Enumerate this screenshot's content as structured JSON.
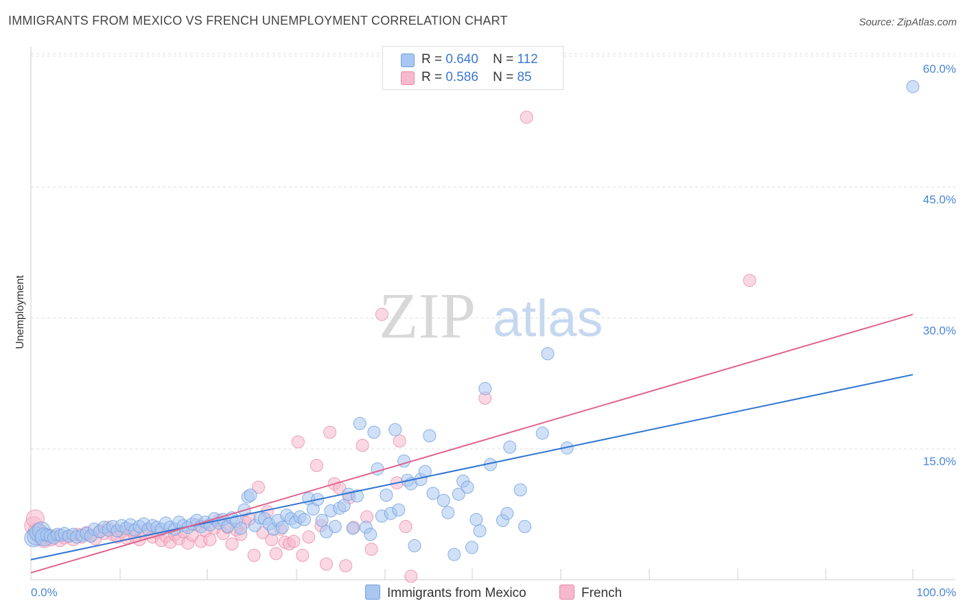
{
  "title": "IMMIGRANTS FROM MEXICO VS FRENCH UNEMPLOYMENT CORRELATION CHART",
  "source": "Source: ZipAtlas.com",
  "legend": {
    "row1": {
      "r_label": "R =",
      "r_value": "0.640",
      "n_label": "N =",
      "n_value": "112"
    },
    "row2": {
      "r_label": "R =",
      "r_value": "0.586",
      "n_label": "N =",
      "n_value": "85"
    }
  },
  "bottom_legend": {
    "series1": "Immigrants from Mexico",
    "series2": "French"
  },
  "watermark": {
    "part1": "ZIP",
    "part2": "atlas"
  },
  "colors": {
    "blue_fill": "#a9c7f0",
    "blue_stroke": "#6f9fde",
    "blue_line": "#2f74d0",
    "pink_fill": "#f6b8cc",
    "pink_stroke": "#e88aa8",
    "pink_line": "#e0628d",
    "tick_text": "#4a86d8",
    "grid": "#dddddd"
  },
  "chart_data": {
    "type": "scatter",
    "title": "IMMIGRANTS FROM MEXICO VS FRENCH UNEMPLOYMENT CORRELATION CHART",
    "xlabel": "",
    "ylabel": "Unemployment",
    "xlim": [
      0,
      100
    ],
    "ylim": [
      0,
      63
    ],
    "x_tick_labels": [
      "0.0%",
      "100.0%"
    ],
    "y_ticks": [
      15,
      30,
      45,
      60
    ],
    "y_tick_labels": [
      "15.0%",
      "30.0%",
      "45.0%",
      "60.0%"
    ],
    "grid": true,
    "legend_position": "top-center",
    "series": [
      {
        "name": "Immigrants from Mexico",
        "color": "#a9c7f0",
        "r": 0.64,
        "n": 112,
        "trend": {
          "x": [
            0,
            100
          ],
          "y": [
            2.3,
            23.5
          ]
        },
        "points": [
          [
            0.3,
            4.8
          ],
          [
            0.6,
            5.0
          ],
          [
            0.9,
            5.4
          ],
          [
            1.2,
            5.6
          ],
          [
            1.5,
            4.9
          ],
          [
            1.8,
            5.1
          ],
          [
            2.2,
            5.0
          ],
          [
            2.6,
            4.8
          ],
          [
            3.0,
            5.2
          ],
          [
            3.4,
            5.1
          ],
          [
            3.8,
            5.3
          ],
          [
            4.3,
            5.0
          ],
          [
            4.8,
            5.2
          ],
          [
            5.2,
            4.9
          ],
          [
            5.8,
            5.1
          ],
          [
            6.3,
            5.3
          ],
          [
            6.8,
            5.0
          ],
          [
            7.2,
            5.8
          ],
          [
            7.8,
            5.5
          ],
          [
            8.3,
            6.0
          ],
          [
            8.8,
            5.7
          ],
          [
            9.3,
            6.1
          ],
          [
            9.8,
            5.6
          ],
          [
            10.3,
            6.2
          ],
          [
            10.8,
            5.9
          ],
          [
            11.3,
            6.3
          ],
          [
            11.8,
            5.7
          ],
          [
            12.3,
            6.1
          ],
          [
            12.8,
            6.4
          ],
          [
            13.3,
            5.8
          ],
          [
            13.8,
            6.2
          ],
          [
            14.3,
            6.0
          ],
          [
            14.8,
            5.8
          ],
          [
            15.3,
            6.5
          ],
          [
            15.8,
            6.0
          ],
          [
            16.3,
            5.8
          ],
          [
            16.8,
            6.6
          ],
          [
            17.3,
            6.2
          ],
          [
            17.8,
            6.0
          ],
          [
            18.3,
            6.4
          ],
          [
            18.8,
            6.8
          ],
          [
            19.3,
            6.1
          ],
          [
            19.8,
            6.6
          ],
          [
            20.3,
            6.3
          ],
          [
            20.8,
            7.0
          ],
          [
            21.3,
            6.5
          ],
          [
            21.8,
            6.9
          ],
          [
            22.3,
            6.1
          ],
          [
            22.8,
            7.1
          ],
          [
            23.3,
            6.7
          ],
          [
            23.8,
            5.9
          ],
          [
            24.2,
            8.0
          ],
          [
            24.6,
            9.5
          ],
          [
            24.9,
            9.7
          ],
          [
            25.4,
            6.2
          ],
          [
            26.0,
            7.1
          ],
          [
            26.5,
            7.0
          ],
          [
            27.0,
            6.4
          ],
          [
            27.5,
            5.8
          ],
          [
            28.0,
            6.8
          ],
          [
            28.5,
            6.0
          ],
          [
            29.0,
            7.4
          ],
          [
            29.5,
            7.0
          ],
          [
            30.0,
            6.6
          ],
          [
            30.5,
            7.2
          ],
          [
            31.0,
            6.9
          ],
          [
            31.5,
            9.3
          ],
          [
            32.0,
            8.1
          ],
          [
            32.5,
            9.2
          ],
          [
            33.0,
            6.8
          ],
          [
            33.5,
            5.5
          ],
          [
            34.0,
            7.9
          ],
          [
            34.5,
            6.1
          ],
          [
            35.0,
            8.2
          ],
          [
            35.5,
            8.5
          ],
          [
            36.0,
            9.8
          ],
          [
            36.5,
            5.9
          ],
          [
            37.0,
            9.6
          ],
          [
            37.3,
            17.9
          ],
          [
            38.0,
            6.0
          ],
          [
            38.5,
            5.2
          ],
          [
            38.9,
            16.9
          ],
          [
            39.3,
            12.7
          ],
          [
            39.8,
            7.3
          ],
          [
            40.3,
            9.7
          ],
          [
            40.8,
            7.6
          ],
          [
            41.3,
            17.2
          ],
          [
            41.7,
            8.0
          ],
          [
            42.3,
            13.6
          ],
          [
            42.7,
            11.4
          ],
          [
            43.1,
            11.0
          ],
          [
            43.5,
            3.9
          ],
          [
            44.2,
            11.5
          ],
          [
            44.7,
            12.4
          ],
          [
            45.2,
            16.5
          ],
          [
            45.6,
            9.9
          ],
          [
            46.8,
            9.1
          ],
          [
            47.3,
            7.7
          ],
          [
            48.0,
            2.9
          ],
          [
            48.5,
            9.8
          ],
          [
            49.0,
            11.3
          ],
          [
            49.5,
            10.6
          ],
          [
            50.0,
            3.7
          ],
          [
            50.5,
            6.9
          ],
          [
            50.9,
            5.6
          ],
          [
            51.5,
            21.9
          ],
          [
            52.1,
            13.2
          ],
          [
            53.5,
            6.8
          ],
          [
            54.0,
            7.6
          ],
          [
            54.3,
            15.2
          ],
          [
            55.5,
            10.3
          ],
          [
            56.0,
            6.1
          ],
          [
            58.0,
            16.8
          ],
          [
            58.6,
            25.9
          ],
          [
            60.8,
            15.1
          ],
          [
            100.0,
            56.5
          ]
        ]
      },
      {
        "name": "French",
        "color": "#f6b8cc",
        "r": 0.586,
        "n": 85,
        "trend": {
          "x": [
            0,
            100
          ],
          "y": [
            0.8,
            30.4
          ]
        },
        "points": [
          [
            0.3,
            6.2
          ],
          [
            0.7,
            5.5
          ],
          [
            1.1,
            5.0
          ],
          [
            1.5,
            4.7
          ],
          [
            1.9,
            5.2
          ],
          [
            2.3,
            4.6
          ],
          [
            2.8,
            5.0
          ],
          [
            3.3,
            4.5
          ],
          [
            3.8,
            4.8
          ],
          [
            4.3,
            5.0
          ],
          [
            4.8,
            4.6
          ],
          [
            5.3,
            5.2
          ],
          [
            5.8,
            4.9
          ],
          [
            6.3,
            5.4
          ],
          [
            6.8,
            5.1
          ],
          [
            7.3,
            4.7
          ],
          [
            7.8,
            5.6
          ],
          [
            8.3,
            5.3
          ],
          [
            8.8,
            6.0
          ],
          [
            9.3,
            5.2
          ],
          [
            9.8,
            4.9
          ],
          [
            10.3,
            5.5
          ],
          [
            10.8,
            4.8
          ],
          [
            11.3,
            5.7
          ],
          [
            11.8,
            5.0
          ],
          [
            12.3,
            4.6
          ],
          [
            12.8,
            5.3
          ],
          [
            13.3,
            5.8
          ],
          [
            13.8,
            4.9
          ],
          [
            14.3,
            5.4
          ],
          [
            14.8,
            4.5
          ],
          [
            15.3,
            5.0
          ],
          [
            15.8,
            4.3
          ],
          [
            16.3,
            5.2
          ],
          [
            16.8,
            4.7
          ],
          [
            17.3,
            5.5
          ],
          [
            17.8,
            4.2
          ],
          [
            18.3,
            5.1
          ],
          [
            18.8,
            6.3
          ],
          [
            19.3,
            4.4
          ],
          [
            19.8,
            5.6
          ],
          [
            20.3,
            4.6
          ],
          [
            20.8,
            5.9
          ],
          [
            21.3,
            6.8
          ],
          [
            21.8,
            5.3
          ],
          [
            22.3,
            6.0
          ],
          [
            22.8,
            4.1
          ],
          [
            23.3,
            5.7
          ],
          [
            23.8,
            5.2
          ],
          [
            24.3,
            6.6
          ],
          [
            24.8,
            7.0
          ],
          [
            25.3,
            2.8
          ],
          [
            25.8,
            10.6
          ],
          [
            26.3,
            5.4
          ],
          [
            26.8,
            7.8
          ],
          [
            27.3,
            4.6
          ],
          [
            27.8,
            3.0
          ],
          [
            28.3,
            5.8
          ],
          [
            28.8,
            4.3
          ],
          [
            29.3,
            4.1
          ],
          [
            29.8,
            4.4
          ],
          [
            30.3,
            15.8
          ],
          [
            30.8,
            2.8
          ],
          [
            31.5,
            4.9
          ],
          [
            32.4,
            13.1
          ],
          [
            32.9,
            6.2
          ],
          [
            33.5,
            1.8
          ],
          [
            33.9,
            16.9
          ],
          [
            34.4,
            11.0
          ],
          [
            35.0,
            10.5
          ],
          [
            35.7,
            1.6
          ],
          [
            36.1,
            9.4
          ],
          [
            36.6,
            6.0
          ],
          [
            37.6,
            15.4
          ],
          [
            38.1,
            7.2
          ],
          [
            38.6,
            3.5
          ],
          [
            39.8,
            30.4
          ],
          [
            41.5,
            11.1
          ],
          [
            41.8,
            15.9
          ],
          [
            42.5,
            6.1
          ],
          [
            43.1,
            0.4
          ],
          [
            51.5,
            20.8
          ],
          [
            56.2,
            53.0
          ],
          [
            81.5,
            34.3
          ],
          [
            0.5,
            7.0
          ]
        ]
      }
    ]
  }
}
